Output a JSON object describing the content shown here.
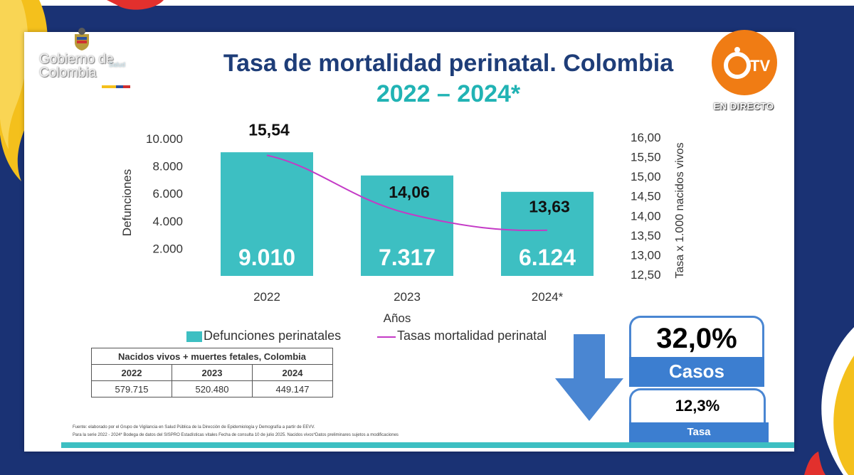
{
  "slide": {
    "title": "Tasa de mortalidad perinatal. Colombia",
    "subtitle": "2022 – 2024*"
  },
  "branding": {
    "gov_logo_line1": "Gobierno de",
    "gov_logo_line2": "Colombia",
    "gov_logo_salud": "Salud",
    "tv_logo_text": "TV",
    "tv_live_label": "EN DIRECTO"
  },
  "colors": {
    "bar": "#3dbfc2",
    "line": "#c43ac6",
    "title": "#1e3d78",
    "subtitle": "#21b3b4",
    "frame": "#1a3274",
    "accent_blue": "#3c7ed0",
    "tv_orange": "#f07c14"
  },
  "chart_data": {
    "type": "bar",
    "categories": [
      "2022",
      "2023",
      "2024*"
    ],
    "xlabel": "Años",
    "ylabel": "Defunciones",
    "y2label": "Tasa x 1.000 nacidos vivos",
    "ylim": [
      0,
      10000
    ],
    "y_ticks": [
      "2.000",
      "4.000",
      "6.000",
      "8.000",
      "10.000"
    ],
    "y_tick_values": [
      2000,
      4000,
      6000,
      8000,
      10000
    ],
    "y2lim": [
      12.5,
      16.0
    ],
    "y2_ticks": [
      "12,50",
      "13,00",
      "13,50",
      "14,00",
      "14,50",
      "15,00",
      "15,50",
      "16,00"
    ],
    "y2_tick_values": [
      12.5,
      13.0,
      13.5,
      14.0,
      14.5,
      15.0,
      15.5,
      16.0
    ],
    "series": [
      {
        "name": "Defunciones perinatales",
        "type": "bar",
        "axis": "left",
        "values": [
          9010,
          7317,
          6124
        ],
        "labels": [
          "9.010",
          "7.317",
          "6.124"
        ]
      },
      {
        "name": "Tasas mortalidad perinatal",
        "type": "line",
        "axis": "right",
        "values": [
          15.54,
          14.06,
          13.63
        ],
        "labels": [
          "15,54",
          "14,06",
          "13,63"
        ]
      }
    ],
    "legend": "bottom",
    "grid": false
  },
  "births_table": {
    "title": "Nacidos vivos + muertes fetales, Colombia",
    "headers": [
      "2022",
      "2023",
      "2024"
    ],
    "values": [
      "579.715",
      "520.480",
      "449.147"
    ]
  },
  "change_boxes": {
    "casos_pct": "32,0%",
    "casos_label": "Casos",
    "tasa_pct": "12,3%",
    "tasa_label": "Tasa"
  },
  "source_note": {
    "line1": "Fuente: elaborado por el Grupo de Vigilancia en Salud Pública de la Dirección de Epidemiología y Demografía a partir de EEVV.",
    "line2": "Para la serie 2022 - 2024* Bodega de datos del SISPRO Estadísticas vitales Fecha de consulta 10 de julio 2025. Nacidos vivos*Datos preliminares sujetos a modificaciones"
  }
}
